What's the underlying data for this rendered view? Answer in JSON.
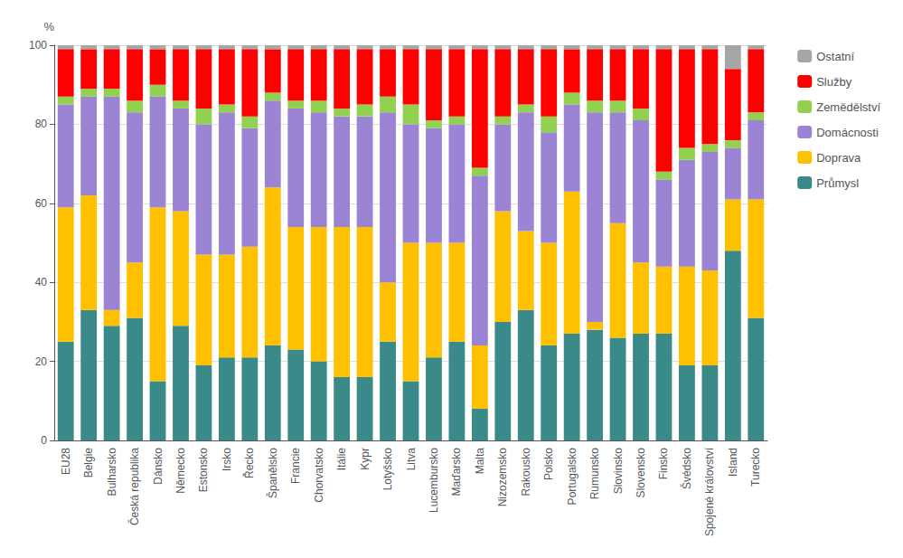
{
  "chart_data": {
    "type": "bar",
    "stacked": true,
    "ylabel": "%",
    "categories": [
      "EU28",
      "Belgie",
      "Bulharsko",
      "Česká republika",
      "Dánsko",
      "Německo",
      "Estonsko",
      "Irsko",
      "Řecko",
      "Španělsko",
      "Francie",
      "Chorvatsko",
      "Itálie",
      "Kypr",
      "Lotyšsko",
      "Litva",
      "Lucembursko",
      "Maďarsko",
      "Malta",
      "Nizozemsko",
      "Rakousko",
      "Polsko",
      "Portugalsko",
      "Rumunsko",
      "Slovinsko",
      "Slovensko",
      "Finsko",
      "Švédsko",
      "Spojené království",
      "Island",
      "Turecko"
    ],
    "series": [
      {
        "name": "Průmysl",
        "color": "#3A8A8A",
        "values": [
          25,
          33,
          29,
          31,
          15,
          29,
          19,
          21,
          21,
          24,
          23,
          20,
          16,
          16,
          25,
          15,
          21,
          25,
          8,
          30,
          33,
          24,
          27,
          28,
          26,
          27,
          27,
          19,
          19,
          48,
          31
        ]
      },
      {
        "name": "Doprava",
        "color": "#FFC000",
        "values": [
          34,
          29,
          4,
          14,
          44,
          29,
          28,
          26,
          28,
          40,
          31,
          34,
          38,
          38,
          15,
          35,
          29,
          25,
          16,
          28,
          20,
          26,
          36,
          2,
          29,
          18,
          17,
          25,
          24,
          13,
          30
        ]
      },
      {
        "name": "Domácnosti",
        "color": "#9B84D4",
        "values": [
          26,
          25,
          54,
          38,
          28,
          26,
          33,
          36,
          30,
          22,
          30,
          29,
          28,
          28,
          43,
          30,
          29,
          30,
          43,
          22,
          30,
          28,
          22,
          53,
          28,
          36,
          22,
          27,
          30,
          13,
          20
        ]
      },
      {
        "name": "Zemědělství",
        "color": "#92D050",
        "values": [
          2,
          2,
          2,
          3,
          3,
          2,
          4,
          2,
          3,
          2,
          2,
          3,
          2,
          3,
          4,
          5,
          2,
          2,
          2,
          2,
          2,
          4,
          3,
          3,
          3,
          3,
          2,
          3,
          2,
          2,
          2
        ]
      },
      {
        "name": "Služby",
        "color": "#FF0000",
        "values": [
          12,
          10,
          10,
          13,
          9,
          13,
          15,
          14,
          17,
          11,
          13,
          13,
          15,
          14,
          12,
          14,
          18,
          17,
          30,
          17,
          14,
          17,
          11,
          13,
          13,
          15,
          31,
          25,
          24,
          18,
          16
        ]
      },
      {
        "name": "Ostatní",
        "color": "#A6A6A6",
        "values": [
          1,
          1,
          1,
          1,
          1,
          1,
          1,
          1,
          1,
          1,
          1,
          1,
          1,
          1,
          1,
          1,
          1,
          1,
          1,
          1,
          1,
          1,
          1,
          1,
          1,
          1,
          1,
          1,
          1,
          6,
          1
        ]
      }
    ],
    "ylim": [
      0,
      100
    ],
    "yticks": [
      0,
      20,
      40,
      60,
      80,
      100
    ],
    "grid": true,
    "legend": "right"
  }
}
